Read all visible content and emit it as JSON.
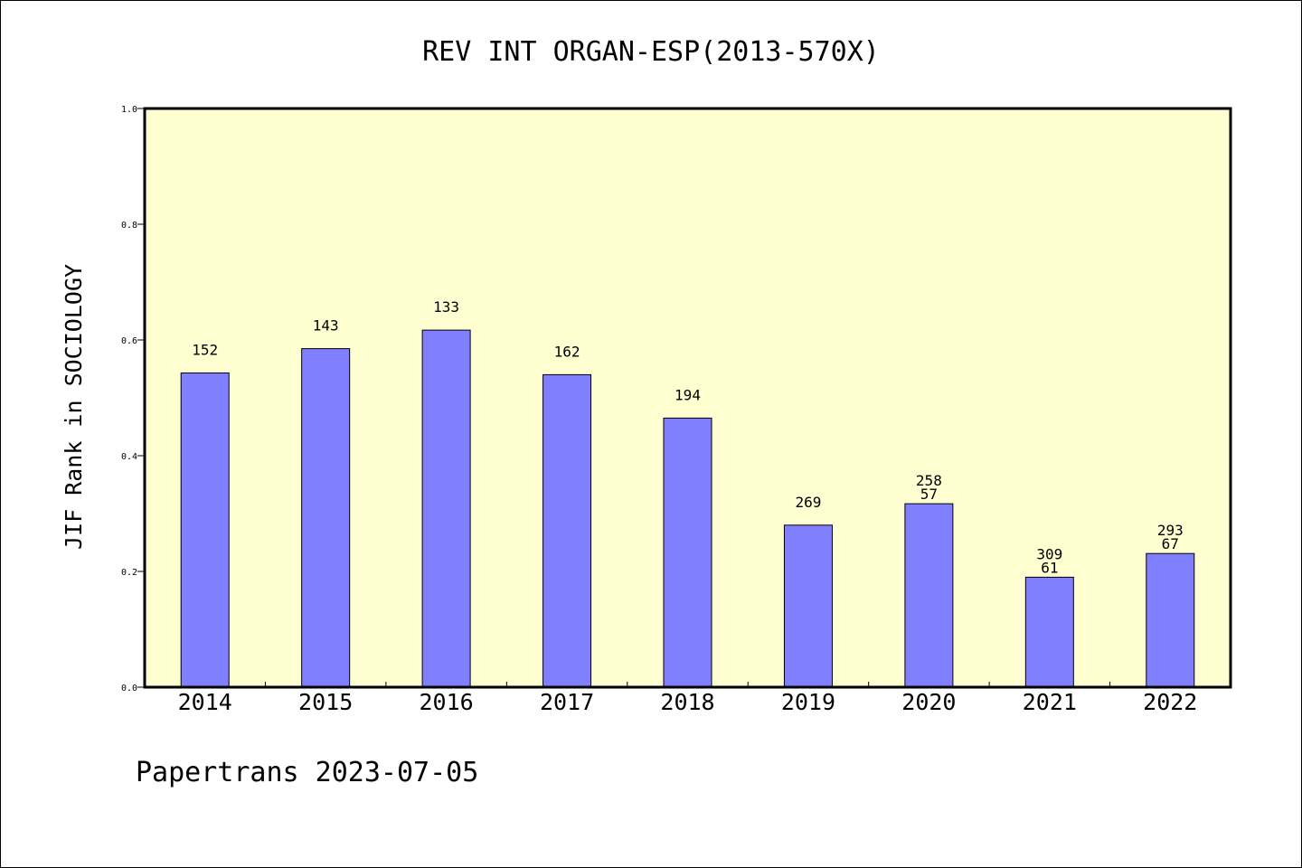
{
  "footer": "Papertrans 2023-07-05",
  "chart_data": {
    "type": "bar",
    "title": "REV INT ORGAN-ESP(2013-570X)",
    "xlabel": "",
    "ylabel": "JIF Rank in SOCIOLOGY",
    "ylim": [
      0,
      1.0
    ],
    "yticks": [
      "0.0",
      "0.2",
      "0.4",
      "0.6",
      "0.8",
      "1.0"
    ],
    "categories": [
      "2014",
      "2015",
      "2016",
      "2017",
      "2018",
      "2019",
      "2020",
      "2021",
      "2022"
    ],
    "values": [
      0.543,
      0.585,
      0.617,
      0.54,
      0.465,
      0.28,
      0.317,
      0.19,
      0.231
    ],
    "rank_labels": [
      "152",
      "143",
      "133",
      "162",
      "194",
      "269",
      "258",
      "309",
      "293"
    ],
    "secondary_labels": [
      "",
      "",
      "",
      "",
      "",
      "",
      "57",
      "61",
      "67"
    ],
    "grid": false,
    "legend": "none",
    "colors": {
      "plot_background": "#ffffd2",
      "bar_fill": "#8080ff",
      "bar_stroke": "#000000",
      "axis": "#000000"
    }
  }
}
